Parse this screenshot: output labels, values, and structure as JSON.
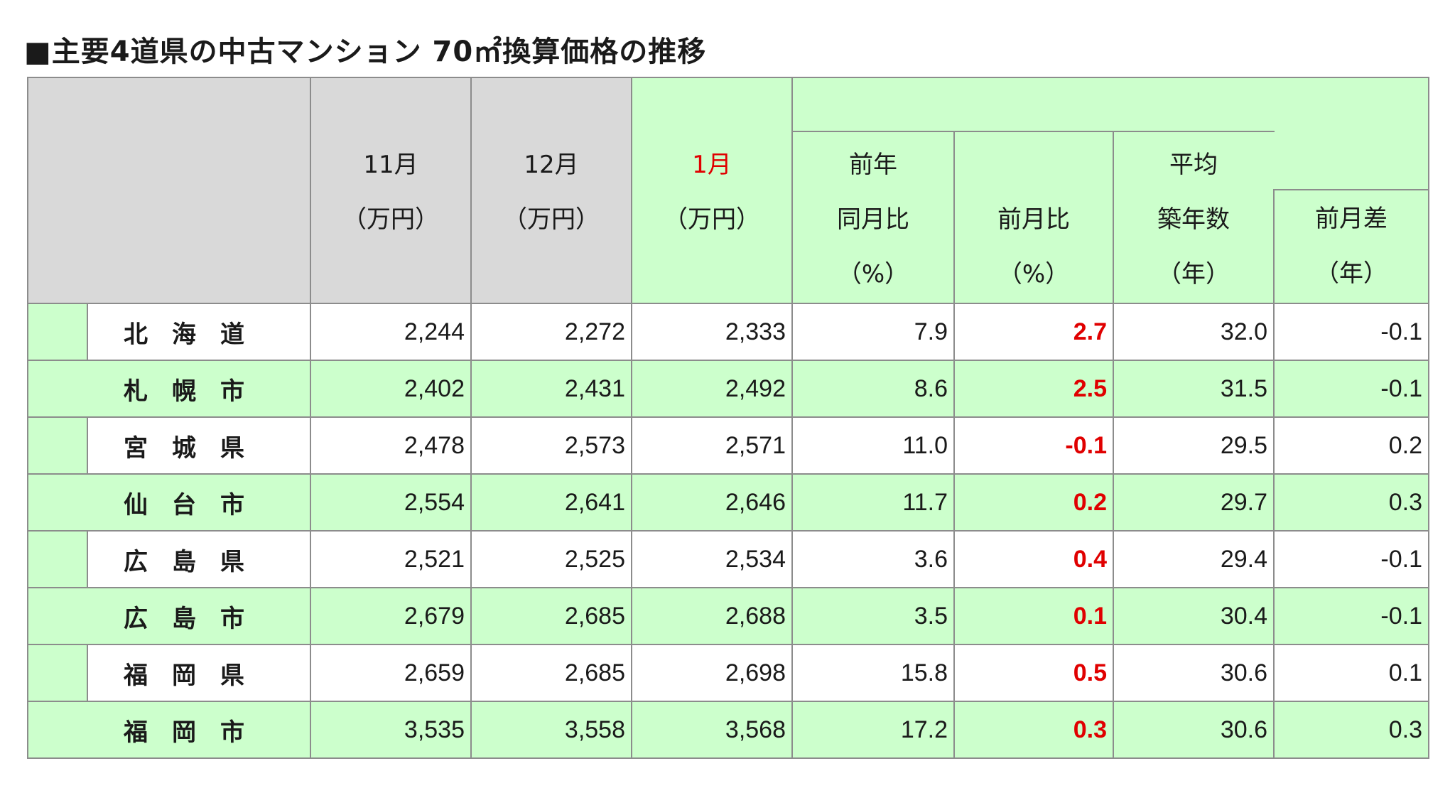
{
  "title": "■主要4道県の中古マンション 70㎡換算価格の推移",
  "headers": {
    "nov": [
      "11月",
      "（万円）"
    ],
    "dec": [
      "12月",
      "（万円）"
    ],
    "jan": [
      "1月",
      "（万円）"
    ],
    "yoy": [
      "前年",
      "同月比",
      "（%）"
    ],
    "mom": [
      "前月比",
      "（%）"
    ],
    "age": [
      "平均",
      "築年数",
      "（年）"
    ],
    "age_diff": [
      "前月差",
      "（年）"
    ]
  },
  "rows": [
    {
      "name": "北　海　道",
      "nov": "2,244",
      "dec": "2,272",
      "jan": "2,333",
      "yoy": "7.9",
      "mom": "2.7",
      "age": "32.0",
      "diff": "-0.1"
    },
    {
      "name": "札　幌　市",
      "nov": "2,402",
      "dec": "2,431",
      "jan": "2,492",
      "yoy": "8.6",
      "mom": "2.5",
      "age": "31.5",
      "diff": "-0.1"
    },
    {
      "name": "宮　城　県",
      "nov": "2,478",
      "dec": "2,573",
      "jan": "2,571",
      "yoy": "11.0",
      "mom": "-0.1",
      "age": "29.5",
      "diff": "0.2"
    },
    {
      "name": "仙　台　市",
      "nov": "2,554",
      "dec": "2,641",
      "jan": "2,646",
      "yoy": "11.7",
      "mom": "0.2",
      "age": "29.7",
      "diff": "0.3"
    },
    {
      "name": "広　島　県",
      "nov": "2,521",
      "dec": "2,525",
      "jan": "2,534",
      "yoy": "3.6",
      "mom": "0.4",
      "age": "29.4",
      "diff": "-0.1"
    },
    {
      "name": "広　島　市",
      "nov": "2,679",
      "dec": "2,685",
      "jan": "2,688",
      "yoy": "3.5",
      "mom": "0.1",
      "age": "30.4",
      "diff": "-0.1"
    },
    {
      "name": "福　岡　県",
      "nov": "2,659",
      "dec": "2,685",
      "jan": "2,698",
      "yoy": "15.8",
      "mom": "0.5",
      "age": "30.6",
      "diff": "0.1"
    },
    {
      "name": "福　岡　市",
      "nov": "3,535",
      "dec": "3,558",
      "jan": "3,568",
      "yoy": "17.2",
      "mom": "0.3",
      "age": "30.6",
      "diff": "0.3"
    }
  ],
  "colors": {
    "header_gray": "#d9d9d9",
    "green": "#ccffcc",
    "accent_red": "#e00000"
  }
}
